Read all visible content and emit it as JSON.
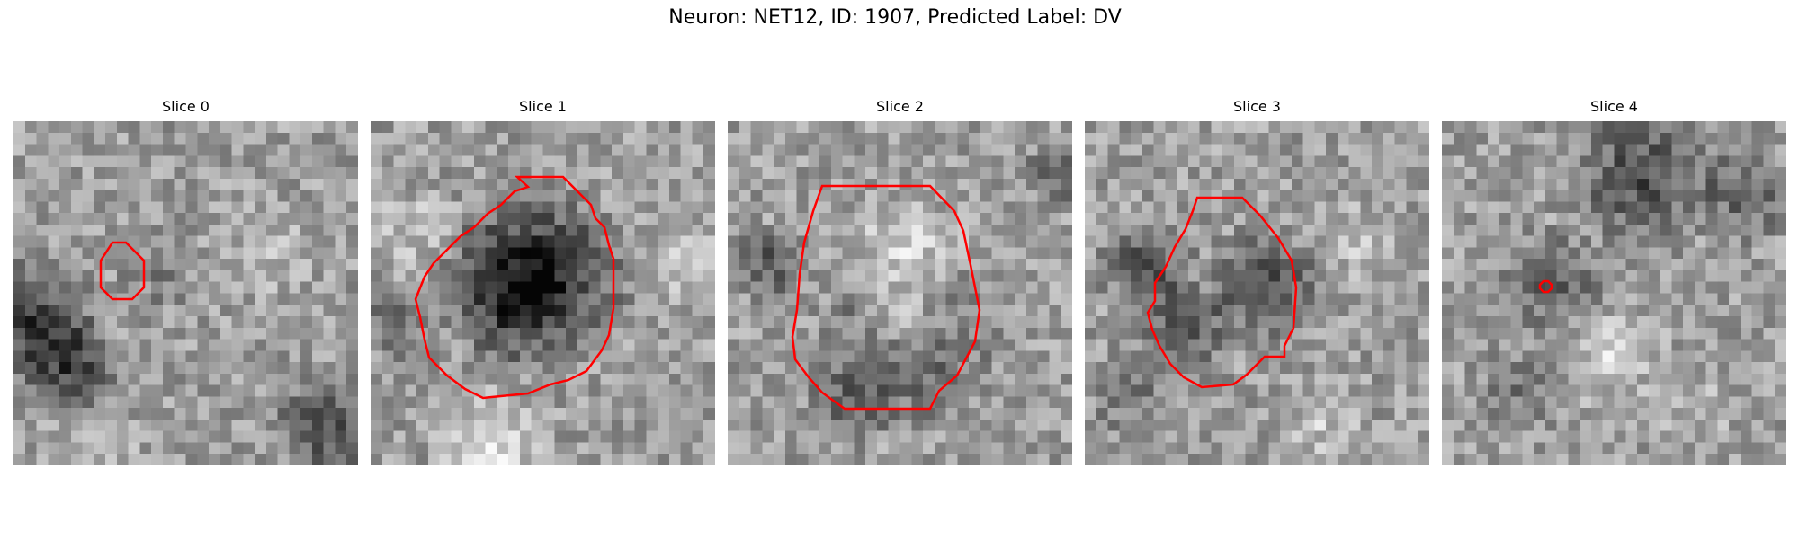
{
  "figure": {
    "title": "Neuron: NET12, ID: 1907, Predicted Label: DV",
    "contour_color": "#ff0000",
    "colormap": "gray",
    "slices": [
      {
        "title": "Slice 0"
      },
      {
        "title": "Slice 1"
      },
      {
        "title": "Slice 2"
      },
      {
        "title": "Slice 3"
      },
      {
        "title": "Slice 4"
      }
    ]
  }
}
